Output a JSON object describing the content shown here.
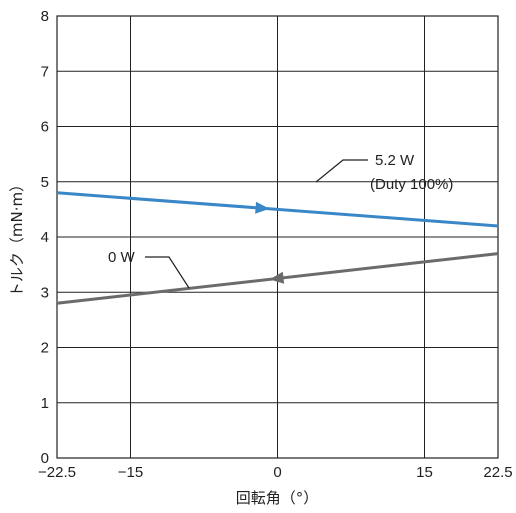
{
  "chart_data": {
    "type": "line",
    "xlabel": "回転角（°）",
    "ylabel": "トルク（mN·m）",
    "xlim": [
      -22.5,
      22.5
    ],
    "ylim": [
      0,
      8
    ],
    "x_ticks": [
      -22.5,
      -15,
      0,
      15,
      22.5
    ],
    "x_tick_labels": [
      "−22.5",
      "−15",
      "0",
      "15",
      "22.5"
    ],
    "y_ticks": [
      0,
      1,
      2,
      3,
      4,
      5,
      6,
      7,
      8
    ],
    "y_tick_labels": [
      "0",
      "1",
      "2",
      "3",
      "4",
      "5",
      "6",
      "7",
      "8"
    ],
    "grid": true,
    "series": [
      {
        "name": "5.2 W",
        "note": "(Duty 100%)",
        "color": "#3a87c8",
        "direction": "increasing-angle",
        "x": [
          -22.5,
          22.5
        ],
        "y": [
          4.8,
          4.2
        ]
      },
      {
        "name": "0 W",
        "color": "#6b6b6b",
        "direction": "decreasing-angle",
        "x": [
          -22.5,
          22.5
        ],
        "y": [
          2.8,
          3.7
        ]
      }
    ]
  }
}
